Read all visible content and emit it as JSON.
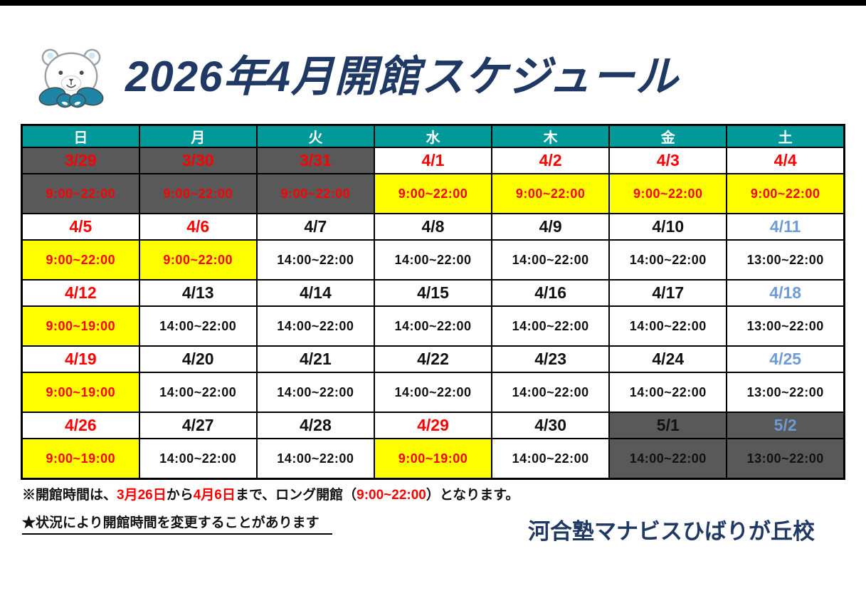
{
  "page": {
    "title": "2026年4月開館スケジュール",
    "footer_note1_parts": [
      {
        "text": "※開館時間は、",
        "color": "black"
      },
      {
        "text": "3月26日",
        "color": "red"
      },
      {
        "text": "から",
        "color": "black"
      },
      {
        "text": "4月6日",
        "color": "red"
      },
      {
        "text": "まで、ロング開館（",
        "color": "black"
      },
      {
        "text": "9:00~22:00",
        "color": "red"
      },
      {
        "text": "）となります。",
        "color": "black"
      }
    ],
    "footer_note2": "★状況により開館時間を変更することがあります",
    "school_name": "河合塾マナビスひばりが丘校"
  },
  "icons": {
    "mascot": "polar-bear-icon"
  },
  "colors": {
    "header_teal": "#009999",
    "closed_gray": "#595959",
    "long_open_yellow": "#FFFF00",
    "highlight_red": "#FF0000",
    "saturday_blue": "#6E9BD5",
    "title_navy": "#1F3864",
    "border_black": "#000000"
  },
  "calendar": {
    "day_headers": [
      "日",
      "月",
      "火",
      "水",
      "木",
      "金",
      "土"
    ],
    "weeks": [
      {
        "dates": [
          {
            "label": "3/29",
            "fg": "red",
            "bg": "gray"
          },
          {
            "label": "3/30",
            "fg": "red",
            "bg": "gray"
          },
          {
            "label": "3/31",
            "fg": "red",
            "bg": "gray"
          },
          {
            "label": "4/1",
            "fg": "red",
            "bg": "white"
          },
          {
            "label": "4/2",
            "fg": "red",
            "bg": "white"
          },
          {
            "label": "4/3",
            "fg": "red",
            "bg": "white"
          },
          {
            "label": "4/4",
            "fg": "red",
            "bg": "white"
          }
        ],
        "times": [
          {
            "label": "9:00~22:00",
            "fg": "red",
            "bg": "gray"
          },
          {
            "label": "9:00~22:00",
            "fg": "red",
            "bg": "gray"
          },
          {
            "label": "9:00~22:00",
            "fg": "red",
            "bg": "gray"
          },
          {
            "label": "9:00~22:00",
            "fg": "red",
            "bg": "yellow"
          },
          {
            "label": "9:00~22:00",
            "fg": "red",
            "bg": "yellow"
          },
          {
            "label": "9:00~22:00",
            "fg": "red",
            "bg": "yellow"
          },
          {
            "label": "9:00~22:00",
            "fg": "red",
            "bg": "yellow"
          }
        ]
      },
      {
        "dates": [
          {
            "label": "4/5",
            "fg": "red",
            "bg": "white"
          },
          {
            "label": "4/6",
            "fg": "red",
            "bg": "white"
          },
          {
            "label": "4/7",
            "fg": "black",
            "bg": "white"
          },
          {
            "label": "4/8",
            "fg": "black",
            "bg": "white"
          },
          {
            "label": "4/9",
            "fg": "black",
            "bg": "white"
          },
          {
            "label": "4/10",
            "fg": "black",
            "bg": "white"
          },
          {
            "label": "4/11",
            "fg": "blue",
            "bg": "white"
          }
        ],
        "times": [
          {
            "label": "9:00~22:00",
            "fg": "red",
            "bg": "yellow"
          },
          {
            "label": "9:00~22:00",
            "fg": "red",
            "bg": "yellow"
          },
          {
            "label": "14:00~22:00",
            "fg": "black",
            "bg": "white"
          },
          {
            "label": "14:00~22:00",
            "fg": "black",
            "bg": "white"
          },
          {
            "label": "14:00~22:00",
            "fg": "black",
            "bg": "white"
          },
          {
            "label": "14:00~22:00",
            "fg": "black",
            "bg": "white"
          },
          {
            "label": "13:00~22:00",
            "fg": "black",
            "bg": "white"
          }
        ]
      },
      {
        "dates": [
          {
            "label": "4/12",
            "fg": "red",
            "bg": "white"
          },
          {
            "label": "4/13",
            "fg": "black",
            "bg": "white"
          },
          {
            "label": "4/14",
            "fg": "black",
            "bg": "white"
          },
          {
            "label": "4/15",
            "fg": "black",
            "bg": "white"
          },
          {
            "label": "4/16",
            "fg": "black",
            "bg": "white"
          },
          {
            "label": "4/17",
            "fg": "black",
            "bg": "white"
          },
          {
            "label": "4/18",
            "fg": "blue",
            "bg": "white"
          }
        ],
        "times": [
          {
            "label": "9:00~19:00",
            "fg": "red",
            "bg": "yellow"
          },
          {
            "label": "14:00~22:00",
            "fg": "black",
            "bg": "white"
          },
          {
            "label": "14:00~22:00",
            "fg": "black",
            "bg": "white"
          },
          {
            "label": "14:00~22:00",
            "fg": "black",
            "bg": "white"
          },
          {
            "label": "14:00~22:00",
            "fg": "black",
            "bg": "white"
          },
          {
            "label": "14:00~22:00",
            "fg": "black",
            "bg": "white"
          },
          {
            "label": "13:00~22:00",
            "fg": "black",
            "bg": "white"
          }
        ]
      },
      {
        "dates": [
          {
            "label": "4/19",
            "fg": "red",
            "bg": "white"
          },
          {
            "label": "4/20",
            "fg": "black",
            "bg": "white"
          },
          {
            "label": "4/21",
            "fg": "black",
            "bg": "white"
          },
          {
            "label": "4/22",
            "fg": "black",
            "bg": "white"
          },
          {
            "label": "4/23",
            "fg": "black",
            "bg": "white"
          },
          {
            "label": "4/24",
            "fg": "black",
            "bg": "white"
          },
          {
            "label": "4/25",
            "fg": "blue",
            "bg": "white"
          }
        ],
        "times": [
          {
            "label": "9:00~19:00",
            "fg": "red",
            "bg": "yellow"
          },
          {
            "label": "14:00~22:00",
            "fg": "black",
            "bg": "white"
          },
          {
            "label": "14:00~22:00",
            "fg": "black",
            "bg": "white"
          },
          {
            "label": "14:00~22:00",
            "fg": "black",
            "bg": "white"
          },
          {
            "label": "14:00~22:00",
            "fg": "black",
            "bg": "white"
          },
          {
            "label": "14:00~22:00",
            "fg": "black",
            "bg": "white"
          },
          {
            "label": "13:00~22:00",
            "fg": "black",
            "bg": "white"
          }
        ]
      },
      {
        "dates": [
          {
            "label": "4/26",
            "fg": "red",
            "bg": "white"
          },
          {
            "label": "4/27",
            "fg": "black",
            "bg": "white"
          },
          {
            "label": "4/28",
            "fg": "black",
            "bg": "white"
          },
          {
            "label": "4/29",
            "fg": "red",
            "bg": "white"
          },
          {
            "label": "4/30",
            "fg": "black",
            "bg": "white"
          },
          {
            "label": "5/1",
            "fg": "black",
            "bg": "gray"
          },
          {
            "label": "5/2",
            "fg": "blue",
            "bg": "gray"
          }
        ],
        "times": [
          {
            "label": "9:00~19:00",
            "fg": "red",
            "bg": "yellow"
          },
          {
            "label": "14:00~22:00",
            "fg": "black",
            "bg": "white"
          },
          {
            "label": "14:00~22:00",
            "fg": "black",
            "bg": "white"
          },
          {
            "label": "9:00~19:00",
            "fg": "red",
            "bg": "yellow"
          },
          {
            "label": "14:00~22:00",
            "fg": "black",
            "bg": "white"
          },
          {
            "label": "14:00~22:00",
            "fg": "black",
            "bg": "gray"
          },
          {
            "label": "13:00~22:00",
            "fg": "black",
            "bg": "gray"
          }
        ]
      }
    ]
  }
}
